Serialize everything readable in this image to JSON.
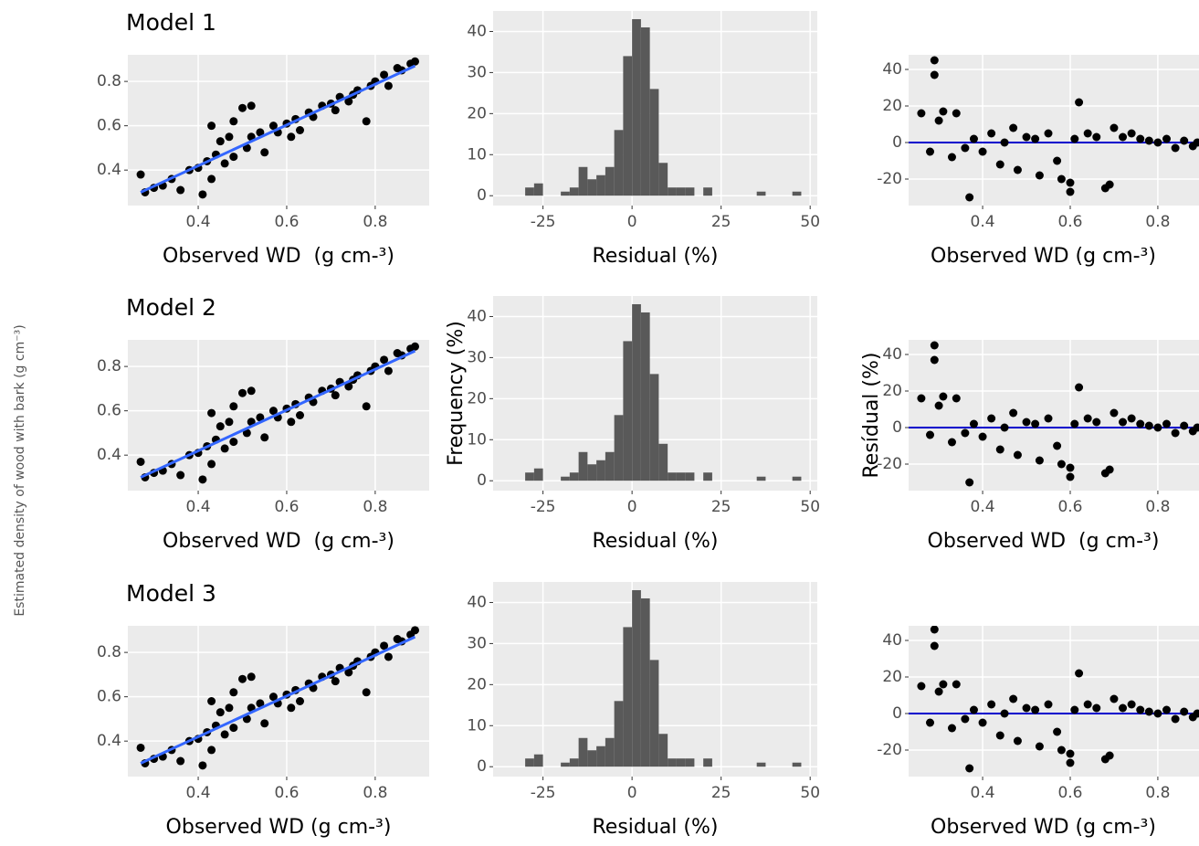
{
  "shared_ylabel": "Estimated density of wood with bark (g cm⁻³)",
  "chart_data": [
    {
      "type": "scatter",
      "title": "Model 1",
      "xlabel": "Observed WD  (g cm-³)",
      "color": "#000000",
      "grid": true,
      "xlim": [
        0.241,
        0.922
      ],
      "ylim": [
        0.24,
        0.92
      ],
      "xticks": [
        0.4,
        0.6,
        0.8
      ],
      "yticks": [
        0.4,
        0.6,
        0.8
      ],
      "x": [
        0.27,
        0.28,
        0.3,
        0.32,
        0.34,
        0.36,
        0.38,
        0.4,
        0.41,
        0.42,
        0.43,
        0.44,
        0.45,
        0.46,
        0.47,
        0.48,
        0.5,
        0.51,
        0.52,
        0.54,
        0.55,
        0.57,
        0.58,
        0.6,
        0.62,
        0.63,
        0.65,
        0.66,
        0.68,
        0.7,
        0.71,
        0.72,
        0.74,
        0.75,
        0.76,
        0.78,
        0.79,
        0.8,
        0.82,
        0.83,
        0.85,
        0.86,
        0.88,
        0.89,
        0.43,
        0.48,
        0.52,
        0.61
      ],
      "values": [
        0.38,
        0.3,
        0.32,
        0.33,
        0.36,
        0.31,
        0.4,
        0.41,
        0.29,
        0.44,
        0.6,
        0.47,
        0.53,
        0.43,
        0.55,
        0.46,
        0.68,
        0.5,
        0.55,
        0.57,
        0.48,
        0.6,
        0.57,
        0.61,
        0.63,
        0.58,
        0.66,
        0.64,
        0.69,
        0.7,
        0.67,
        0.73,
        0.71,
        0.74,
        0.76,
        0.62,
        0.78,
        0.8,
        0.83,
        0.78,
        0.86,
        0.85,
        0.88,
        0.89,
        0.36,
        0.62,
        0.69,
        0.55
      ],
      "fit": {
        "x": [
          0.27,
          0.89
        ],
        "values": [
          0.3,
          0.87
        ],
        "color": "#3366ff"
      }
    },
    {
      "type": "histogram",
      "xlabel": "Residual (%)",
      "color": "#595959",
      "grid": true,
      "xlim": [
        -39,
        52
      ],
      "ylim": [
        -2.4,
        45
      ],
      "xticks": [
        -25,
        0,
        25,
        50
      ],
      "yticks": [
        0,
        10,
        20,
        30,
        40
      ],
      "bins": [
        -30,
        -27.5,
        -25,
        -22.5,
        -20,
        -17.5,
        -15,
        -12.5,
        -10,
        -7.5,
        -5,
        -2.5,
        0,
        2.5,
        5,
        7.5,
        10,
        12.5,
        15,
        17.5,
        20,
        22.5,
        25,
        27.5,
        30,
        32.5,
        35,
        37.5,
        40,
        42.5,
        45,
        47.5
      ],
      "values": [
        2,
        3,
        0,
        0,
        1,
        2,
        7,
        4,
        5,
        7,
        16,
        34,
        43,
        41,
        26,
        8,
        2,
        2,
        2,
        0,
        2,
        0,
        0,
        0,
        0,
        0,
        1,
        0,
        0,
        0,
        1
      ]
    },
    {
      "type": "scatter",
      "xlabel": "Observed WD (g cm-³)",
      "color": "#000000",
      "grid": true,
      "xlim": [
        0.231,
        0.894
      ],
      "ylim": [
        -34.5,
        48
      ],
      "xticks": [
        0.4,
        0.6,
        0.8
      ],
      "yticks": [
        -20,
        0,
        20,
        40
      ],
      "x": [
        0.26,
        0.28,
        0.29,
        0.29,
        0.3,
        0.31,
        0.33,
        0.34,
        0.36,
        0.37,
        0.38,
        0.4,
        0.42,
        0.44,
        0.45,
        0.47,
        0.48,
        0.5,
        0.52,
        0.53,
        0.55,
        0.57,
        0.58,
        0.6,
        0.6,
        0.61,
        0.62,
        0.64,
        0.66,
        0.68,
        0.69,
        0.7,
        0.72,
        0.74,
        0.76,
        0.78,
        0.8,
        0.82,
        0.84,
        0.86,
        0.88,
        0.89
      ],
      "values": [
        16,
        -5,
        45,
        37,
        12,
        17,
        -8,
        16,
        -3,
        -30,
        2,
        -5,
        5,
        -12,
        0,
        8,
        -15,
        3,
        2,
        -18,
        5,
        -10,
        -20,
        -27,
        -22,
        2,
        22,
        5,
        3,
        -25,
        -23,
        8,
        3,
        5,
        2,
        1,
        0,
        2,
        -3,
        1,
        -2,
        0
      ],
      "reference_line": {
        "value": 0,
        "color": "#0000cc"
      }
    },
    {
      "type": "scatter",
      "title": "Model 2",
      "xlabel": "Observed WD  (g cm-³)",
      "color": "#000000",
      "grid": true,
      "xlim": [
        0.241,
        0.922
      ],
      "ylim": [
        0.24,
        0.92
      ],
      "xticks": [
        0.4,
        0.6,
        0.8
      ],
      "yticks": [
        0.4,
        0.6,
        0.8
      ],
      "x": [
        0.27,
        0.28,
        0.3,
        0.32,
        0.34,
        0.36,
        0.38,
        0.4,
        0.41,
        0.42,
        0.43,
        0.44,
        0.45,
        0.46,
        0.47,
        0.48,
        0.5,
        0.51,
        0.52,
        0.54,
        0.55,
        0.57,
        0.58,
        0.6,
        0.62,
        0.63,
        0.65,
        0.66,
        0.68,
        0.7,
        0.71,
        0.72,
        0.74,
        0.75,
        0.76,
        0.78,
        0.79,
        0.8,
        0.82,
        0.83,
        0.85,
        0.86,
        0.88,
        0.89,
        0.43,
        0.48,
        0.52,
        0.61
      ],
      "values": [
        0.37,
        0.3,
        0.32,
        0.33,
        0.36,
        0.31,
        0.4,
        0.41,
        0.29,
        0.44,
        0.59,
        0.47,
        0.53,
        0.43,
        0.55,
        0.46,
        0.68,
        0.5,
        0.55,
        0.57,
        0.48,
        0.6,
        0.57,
        0.61,
        0.63,
        0.58,
        0.66,
        0.64,
        0.69,
        0.7,
        0.67,
        0.73,
        0.71,
        0.74,
        0.76,
        0.62,
        0.78,
        0.8,
        0.83,
        0.78,
        0.86,
        0.85,
        0.88,
        0.89,
        0.36,
        0.62,
        0.69,
        0.55
      ],
      "fit": {
        "x": [
          0.27,
          0.89
        ],
        "values": [
          0.3,
          0.87
        ],
        "color": "#3366ff"
      }
    },
    {
      "type": "histogram",
      "xlabel": "Residual (%)",
      "ylabel": "Frequency (%)",
      "color": "#595959",
      "grid": true,
      "xlim": [
        -39,
        52
      ],
      "ylim": [
        -2.4,
        45
      ],
      "xticks": [
        -25,
        0,
        25,
        50
      ],
      "yticks": [
        0,
        10,
        20,
        30,
        40
      ],
      "bins": [
        -30,
        -27.5,
        -25,
        -22.5,
        -20,
        -17.5,
        -15,
        -12.5,
        -10,
        -7.5,
        -5,
        -2.5,
        0,
        2.5,
        5,
        7.5,
        10,
        12.5,
        15,
        17.5,
        20,
        22.5,
        25,
        27.5,
        30,
        32.5,
        35,
        37.5,
        40,
        42.5,
        45,
        47.5
      ],
      "values": [
        2,
        3,
        0,
        0,
        1,
        2,
        7,
        4,
        5,
        7,
        16,
        34,
        43,
        41,
        26,
        9,
        2,
        2,
        2,
        0,
        2,
        0,
        0,
        0,
        0,
        0,
        1,
        0,
        0,
        0,
        1
      ]
    },
    {
      "type": "scatter",
      "xlabel": "Observed WD  (g cm-³)",
      "ylabel": "Resídual (%)",
      "color": "#000000",
      "grid": true,
      "xlim": [
        0.231,
        0.894
      ],
      "ylim": [
        -34.5,
        48
      ],
      "xticks": [
        0.4,
        0.6,
        0.8
      ],
      "yticks": [
        -20,
        0,
        20,
        40
      ],
      "x": [
        0.26,
        0.28,
        0.29,
        0.29,
        0.3,
        0.31,
        0.33,
        0.34,
        0.36,
        0.37,
        0.38,
        0.4,
        0.42,
        0.44,
        0.45,
        0.47,
        0.48,
        0.5,
        0.52,
        0.53,
        0.55,
        0.57,
        0.58,
        0.6,
        0.6,
        0.61,
        0.62,
        0.64,
        0.66,
        0.68,
        0.69,
        0.7,
        0.72,
        0.74,
        0.76,
        0.78,
        0.8,
        0.82,
        0.84,
        0.86,
        0.88,
        0.89
      ],
      "values": [
        16,
        -4,
        45,
        37,
        12,
        17,
        -8,
        16,
        -3,
        -30,
        2,
        -5,
        5,
        -12,
        0,
        8,
        -15,
        3,
        2,
        -18,
        5,
        -10,
        -20,
        -27,
        -22,
        2,
        22,
        5,
        3,
        -25,
        -23,
        8,
        3,
        5,
        2,
        1,
        0,
        2,
        -3,
        1,
        -2,
        0
      ],
      "reference_line": {
        "value": 0,
        "color": "#0000cc"
      }
    },
    {
      "type": "scatter",
      "title": "Model 3",
      "xlabel": "Observed WD (g cm-³)",
      "color": "#000000",
      "grid": true,
      "xlim": [
        0.241,
        0.922
      ],
      "ylim": [
        0.24,
        0.92
      ],
      "xticks": [
        0.4,
        0.6,
        0.8
      ],
      "yticks": [
        0.4,
        0.6,
        0.8
      ],
      "x": [
        0.27,
        0.28,
        0.3,
        0.32,
        0.34,
        0.36,
        0.38,
        0.4,
        0.41,
        0.42,
        0.43,
        0.44,
        0.45,
        0.46,
        0.47,
        0.48,
        0.5,
        0.51,
        0.52,
        0.54,
        0.55,
        0.57,
        0.58,
        0.6,
        0.62,
        0.63,
        0.65,
        0.66,
        0.68,
        0.7,
        0.71,
        0.72,
        0.74,
        0.75,
        0.76,
        0.78,
        0.79,
        0.8,
        0.82,
        0.83,
        0.85,
        0.86,
        0.88,
        0.89,
        0.43,
        0.48,
        0.52,
        0.61
      ],
      "values": [
        0.37,
        0.3,
        0.32,
        0.33,
        0.36,
        0.31,
        0.4,
        0.41,
        0.29,
        0.44,
        0.58,
        0.47,
        0.53,
        0.43,
        0.55,
        0.46,
        0.68,
        0.5,
        0.55,
        0.57,
        0.48,
        0.6,
        0.57,
        0.61,
        0.63,
        0.58,
        0.66,
        0.64,
        0.69,
        0.7,
        0.67,
        0.73,
        0.71,
        0.74,
        0.76,
        0.62,
        0.78,
        0.8,
        0.83,
        0.78,
        0.86,
        0.85,
        0.88,
        0.9,
        0.36,
        0.62,
        0.69,
        0.55
      ],
      "fit": {
        "x": [
          0.27,
          0.89
        ],
        "values": [
          0.3,
          0.87
        ],
        "color": "#3366ff"
      }
    },
    {
      "type": "histogram",
      "xlabel": "Residual (%)",
      "color": "#595959",
      "grid": true,
      "xlim": [
        -39,
        52
      ],
      "ylim": [
        -2.4,
        45
      ],
      "xticks": [
        -25,
        0,
        25,
        50
      ],
      "yticks": [
        0,
        10,
        20,
        30,
        40
      ],
      "bins": [
        -30,
        -27.5,
        -25,
        -22.5,
        -20,
        -17.5,
        -15,
        -12.5,
        -10,
        -7.5,
        -5,
        -2.5,
        0,
        2.5,
        5,
        7.5,
        10,
        12.5,
        15,
        17.5,
        20,
        22.5,
        25,
        27.5,
        30,
        32.5,
        35,
        37.5,
        40,
        42.5,
        45,
        47.5
      ],
      "values": [
        2,
        3,
        0,
        0,
        1,
        2,
        7,
        4,
        5,
        7,
        16,
        34,
        43,
        41,
        26,
        8,
        2,
        2,
        2,
        0,
        2,
        0,
        0,
        0,
        0,
        0,
        1,
        0,
        0,
        0,
        1
      ]
    },
    {
      "type": "scatter",
      "xlabel": "Observed WD (g cm-³)",
      "color": "#000000",
      "grid": true,
      "xlim": [
        0.231,
        0.894
      ],
      "ylim": [
        -34.5,
        48
      ],
      "xticks": [
        0.4,
        0.6,
        0.8
      ],
      "yticks": [
        -20,
        0,
        20,
        40
      ],
      "x": [
        0.26,
        0.28,
        0.29,
        0.29,
        0.3,
        0.31,
        0.33,
        0.34,
        0.36,
        0.37,
        0.38,
        0.4,
        0.42,
        0.44,
        0.45,
        0.47,
        0.48,
        0.5,
        0.52,
        0.53,
        0.55,
        0.57,
        0.58,
        0.6,
        0.6,
        0.61,
        0.62,
        0.64,
        0.66,
        0.68,
        0.69,
        0.7,
        0.72,
        0.74,
        0.76,
        0.78,
        0.8,
        0.82,
        0.84,
        0.86,
        0.88,
        0.89
      ],
      "values": [
        15,
        -5,
        46,
        37,
        12,
        16,
        -8,
        16,
        -3,
        -30,
        2,
        -5,
        5,
        -12,
        0,
        8,
        -15,
        3,
        2,
        -18,
        5,
        -10,
        -20,
        -27,
        -22,
        2,
        22,
        5,
        3,
        -25,
        -23,
        8,
        3,
        5,
        2,
        1,
        0,
        2,
        -3,
        1,
        -2,
        0
      ],
      "reference_line": {
        "value": 0,
        "color": "#0000cc"
      }
    }
  ]
}
